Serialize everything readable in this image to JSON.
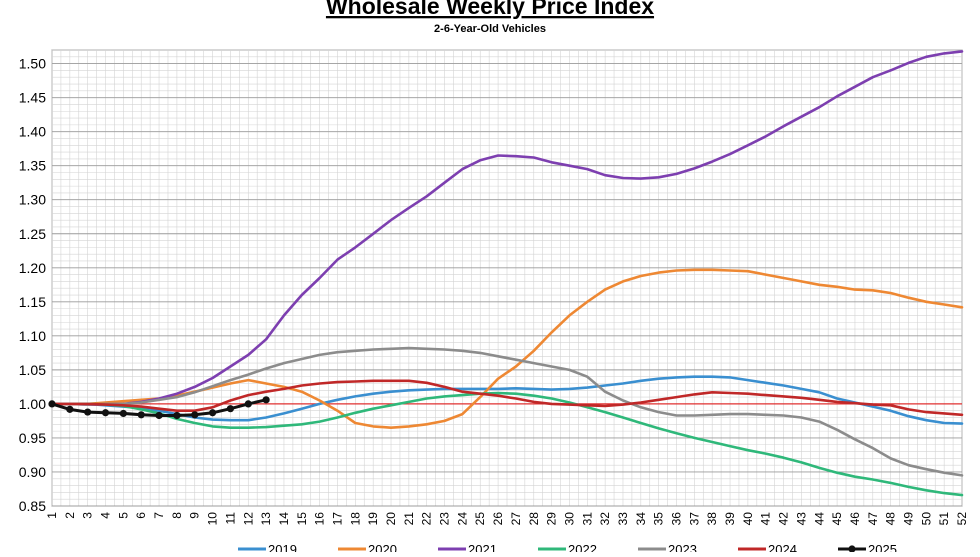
{
  "chart_data": {
    "type": "line",
    "title": "Wholesale Weekly Price Index",
    "subtitle": "2-6-Year-Old Vehicles",
    "xlabel": "",
    "ylabel": "",
    "ylim": [
      0.85,
      1.52
    ],
    "xlim": [
      1,
      52
    ],
    "yticks": [
      "1.50",
      "1.45",
      "1.40",
      "1.35",
      "1.30",
      "1.25",
      "1.20",
      "1.15",
      "1.10",
      "1.05",
      "1.00",
      "0.95",
      "0.90",
      "0.85"
    ],
    "xticks": [
      "1",
      "2",
      "3",
      "4",
      "5",
      "6",
      "7",
      "8",
      "9",
      "10",
      "11",
      "12",
      "13",
      "14",
      "15",
      "16",
      "17",
      "18",
      "19",
      "20",
      "21",
      "22",
      "23",
      "24",
      "25",
      "26",
      "27",
      "28",
      "29",
      "30",
      "31",
      "32",
      "33",
      "34",
      "35",
      "36",
      "37",
      "38",
      "39",
      "40",
      "41",
      "42",
      "43",
      "44",
      "45",
      "46",
      "47",
      "48",
      "49",
      "50",
      "51",
      "52"
    ],
    "grid": true,
    "legend": "bottom",
    "reference_line": 1.0,
    "reference_color": "#e03030",
    "series": [
      {
        "name": "2019",
        "color": "#3a8fd0",
        "values": [
          1.0,
          1.0,
          1.0,
          0.998,
          0.996,
          0.994,
          0.99,
          0.985,
          0.98,
          0.977,
          0.976,
          0.976,
          0.98,
          0.986,
          0.993,
          1.0,
          1.006,
          1.011,
          1.015,
          1.018,
          1.02,
          1.021,
          1.022,
          1.022,
          1.022,
          1.022,
          1.023,
          1.022,
          1.021,
          1.022,
          1.024,
          1.027,
          1.03,
          1.034,
          1.037,
          1.039,
          1.04,
          1.04,
          1.039,
          1.035,
          1.031,
          1.027,
          1.022,
          1.017,
          1.008,
          1.002,
          0.996,
          0.99,
          0.982,
          0.976,
          0.972,
          0.971
        ]
      },
      {
        "name": "2020",
        "color": "#ee8833",
        "values": [
          1.0,
          1.0,
          1.0,
          1.002,
          1.004,
          1.006,
          1.008,
          1.012,
          1.018,
          1.024,
          1.03,
          1.035,
          1.03,
          1.025,
          1.018,
          1.005,
          0.99,
          0.972,
          0.967,
          0.965,
          0.967,
          0.97,
          0.975,
          0.985,
          1.01,
          1.037,
          1.055,
          1.078,
          1.105,
          1.13,
          1.15,
          1.168,
          1.18,
          1.188,
          1.193,
          1.196,
          1.197,
          1.197,
          1.196,
          1.195,
          1.19,
          1.185,
          1.18,
          1.175,
          1.172,
          1.168,
          1.167,
          1.163,
          1.156,
          1.15,
          1.146,
          1.142
        ]
      },
      {
        "name": "2021",
        "color": "#7d3fb0",
        "values": [
          1.0,
          1.0,
          0.999,
          0.999,
          1.0,
          1.003,
          1.008,
          1.015,
          1.025,
          1.038,
          1.055,
          1.072,
          1.095,
          1.13,
          1.16,
          1.185,
          1.212,
          1.23,
          1.25,
          1.27,
          1.288,
          1.305,
          1.325,
          1.345,
          1.358,
          1.365,
          1.364,
          1.362,
          1.355,
          1.35,
          1.345,
          1.336,
          1.332,
          1.331,
          1.333,
          1.338,
          1.346,
          1.356,
          1.367,
          1.38,
          1.393,
          1.408,
          1.422,
          1.436,
          1.452,
          1.466,
          1.48,
          1.49,
          1.501,
          1.51,
          1.515,
          1.518
        ]
      },
      {
        "name": "2022",
        "color": "#2fb87a",
        "values": [
          1.0,
          1.0,
          1.0,
          0.999,
          0.997,
          0.992,
          0.986,
          0.978,
          0.972,
          0.967,
          0.965,
          0.965,
          0.966,
          0.968,
          0.97,
          0.974,
          0.98,
          0.987,
          0.993,
          0.998,
          1.003,
          1.008,
          1.011,
          1.013,
          1.015,
          1.016,
          1.015,
          1.012,
          1.008,
          1.002,
          0.995,
          0.988,
          0.98,
          0.972,
          0.964,
          0.957,
          0.95,
          0.944,
          0.938,
          0.932,
          0.927,
          0.921,
          0.914,
          0.906,
          0.899,
          0.893,
          0.889,
          0.884,
          0.878,
          0.873,
          0.869,
          0.866
        ]
      },
      {
        "name": "2023",
        "color": "#8c8c8c",
        "values": [
          1.0,
          1.0,
          0.999,
          1.0,
          1.0,
          1.002,
          1.006,
          1.01,
          1.017,
          1.026,
          1.035,
          1.043,
          1.052,
          1.06,
          1.066,
          1.072,
          1.076,
          1.078,
          1.08,
          1.081,
          1.082,
          1.081,
          1.08,
          1.078,
          1.075,
          1.07,
          1.065,
          1.06,
          1.055,
          1.05,
          1.04,
          1.018,
          1.005,
          0.995,
          0.988,
          0.983,
          0.983,
          0.984,
          0.985,
          0.985,
          0.984,
          0.983,
          0.98,
          0.974,
          0.962,
          0.948,
          0.935,
          0.92,
          0.91,
          0.904,
          0.899,
          0.895
        ]
      },
      {
        "name": "2024",
        "color": "#c02828",
        "values": [
          1.0,
          1.0,
          1.0,
          0.999,
          0.998,
          0.996,
          0.993,
          0.99,
          0.99,
          0.995,
          1.005,
          1.013,
          1.018,
          1.022,
          1.027,
          1.03,
          1.032,
          1.033,
          1.034,
          1.034,
          1.034,
          1.031,
          1.025,
          1.018,
          1.015,
          1.012,
          1.008,
          1.003,
          1.0,
          0.999,
          0.998,
          0.997,
          0.999,
          1.002,
          1.006,
          1.01,
          1.014,
          1.017,
          1.016,
          1.015,
          1.013,
          1.011,
          1.009,
          1.006,
          1.003,
          1.001,
          0.999,
          0.998,
          0.992,
          0.988,
          0.986,
          0.984
        ]
      },
      {
        "name": "2025",
        "color": "#111111",
        "markers": true,
        "values": [
          1.0,
          0.992,
          0.988,
          0.987,
          0.986,
          0.984,
          0.983,
          0.983,
          0.984,
          0.987,
          0.993,
          1.0,
          1.006
        ]
      }
    ]
  }
}
